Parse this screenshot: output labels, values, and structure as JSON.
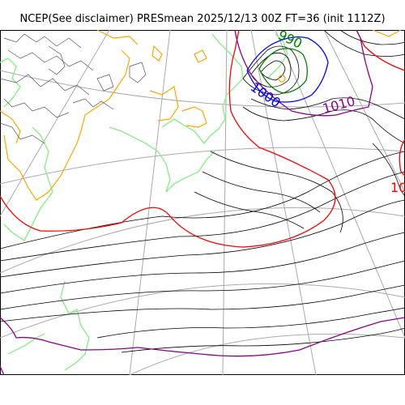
{
  "title": "NCEP(See disclaimer) PRESmean 2025/12/13 00Z FT=36 (init 1112Z)",
  "map": {
    "contour_labels": {
      "label_1000": "1000",
      "label_1010": "1010",
      "label_990": "990",
      "label_right": "10"
    },
    "colors": {
      "isobar": "#000000",
      "isobar_1000": "#0000ff",
      "isobar_1010": "#8b008b",
      "isobar_1020": "#ff0000",
      "isobar_990": "#008000",
      "coastline": "#90ee90",
      "topography": "#ffa500",
      "graticule": "#aaaaaa"
    }
  }
}
